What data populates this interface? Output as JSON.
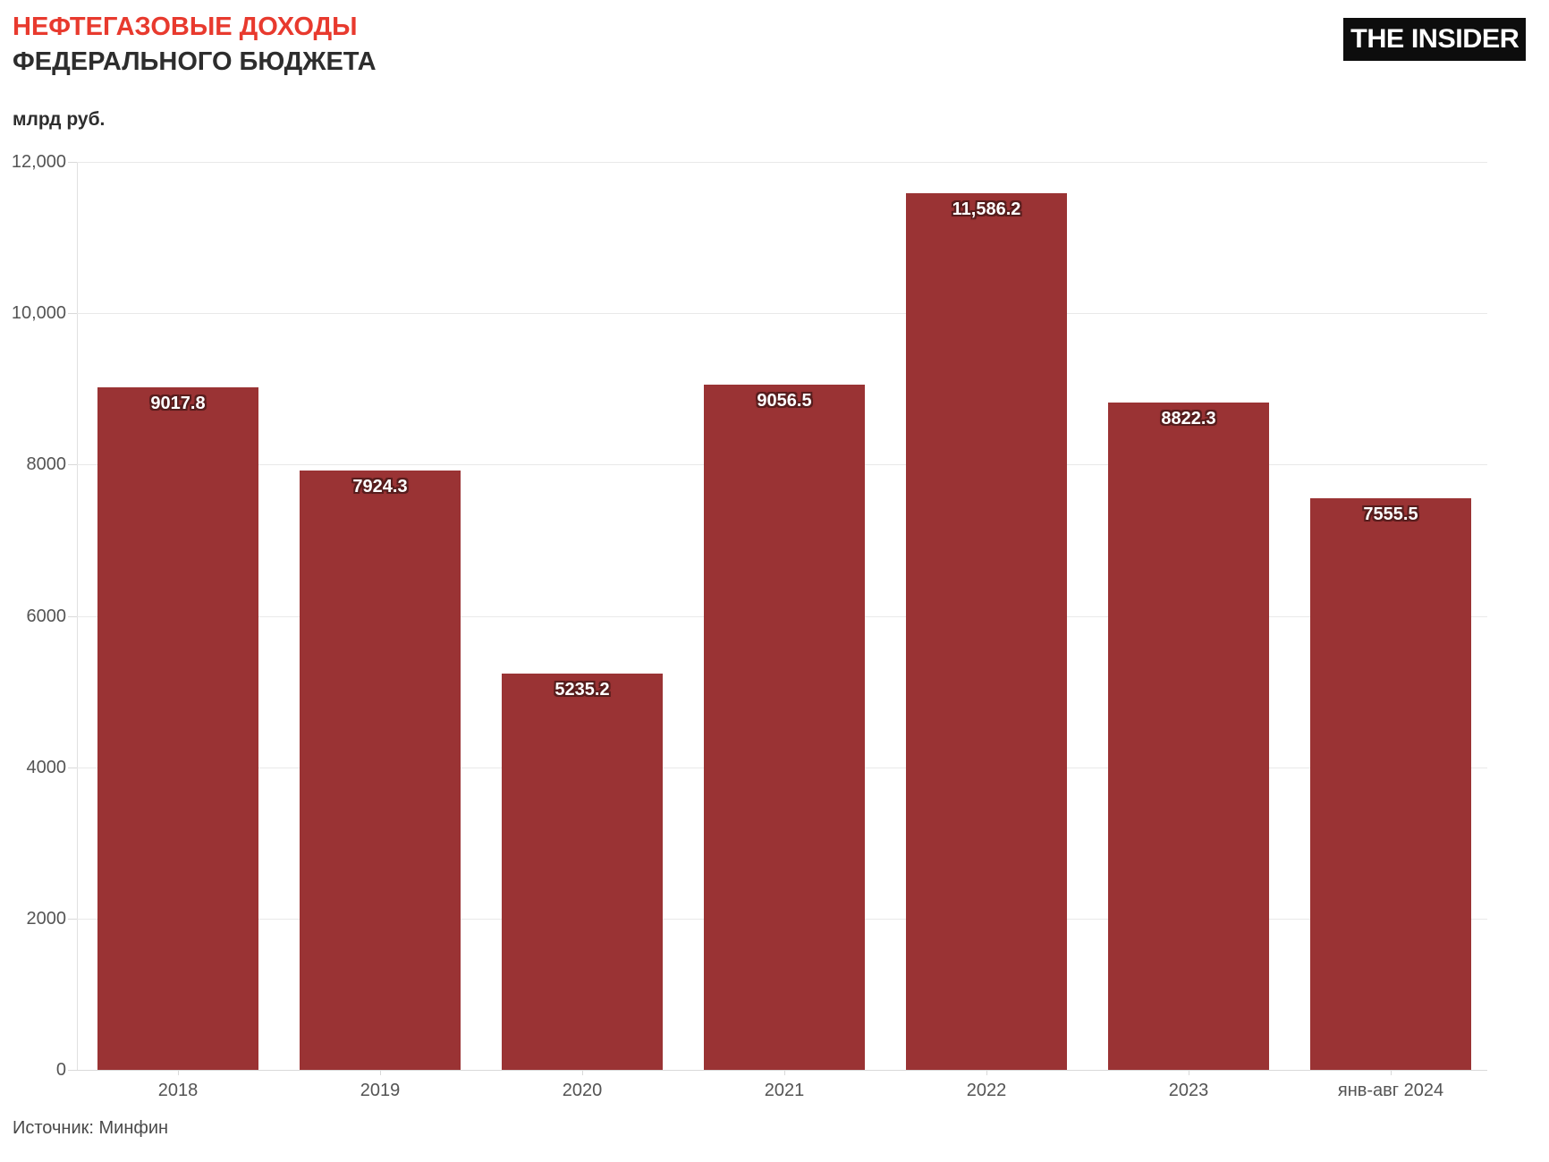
{
  "header": {
    "title_line1": "НЕФТЕГАЗОВЫЕ ДОХОДЫ",
    "title_line2": "ФЕДЕРАЛЬНОГО БЮДЖЕТА",
    "logo_text": "THE INSIDER"
  },
  "chart_data": {
    "type": "bar",
    "title": "НЕФТЕГАЗОВЫЕ ДОХОДЫ ФЕДЕРАЛЬНОГО БЮДЖЕТА",
    "unit_label": "млрд руб.",
    "categories": [
      "2018",
      "2019",
      "2020",
      "2021",
      "2022",
      "2023",
      "янв-авг 2024"
    ],
    "values": [
      9017.8,
      7924.3,
      5235.2,
      9056.5,
      11586.2,
      8822.3,
      7555.5
    ],
    "value_labels": [
      "9017.8",
      "7924.3",
      "5235.2",
      "9056.5",
      "11,586.2",
      "8822.3",
      "7555.5"
    ],
    "ylim": [
      0,
      12000
    ],
    "ytick_values": [
      0,
      2000,
      4000,
      6000,
      8000,
      10000,
      12000
    ],
    "ytick_labels": [
      "0",
      "2000",
      "4000",
      "6000",
      "8000",
      "10,000",
      "12,000"
    ],
    "grid": true,
    "legend": "none",
    "bar_color": "#9a3334",
    "value_label_color": "#ffffff",
    "title_accent_color": "#e83a2e"
  },
  "footer": {
    "source": "Источник: Минфин"
  }
}
